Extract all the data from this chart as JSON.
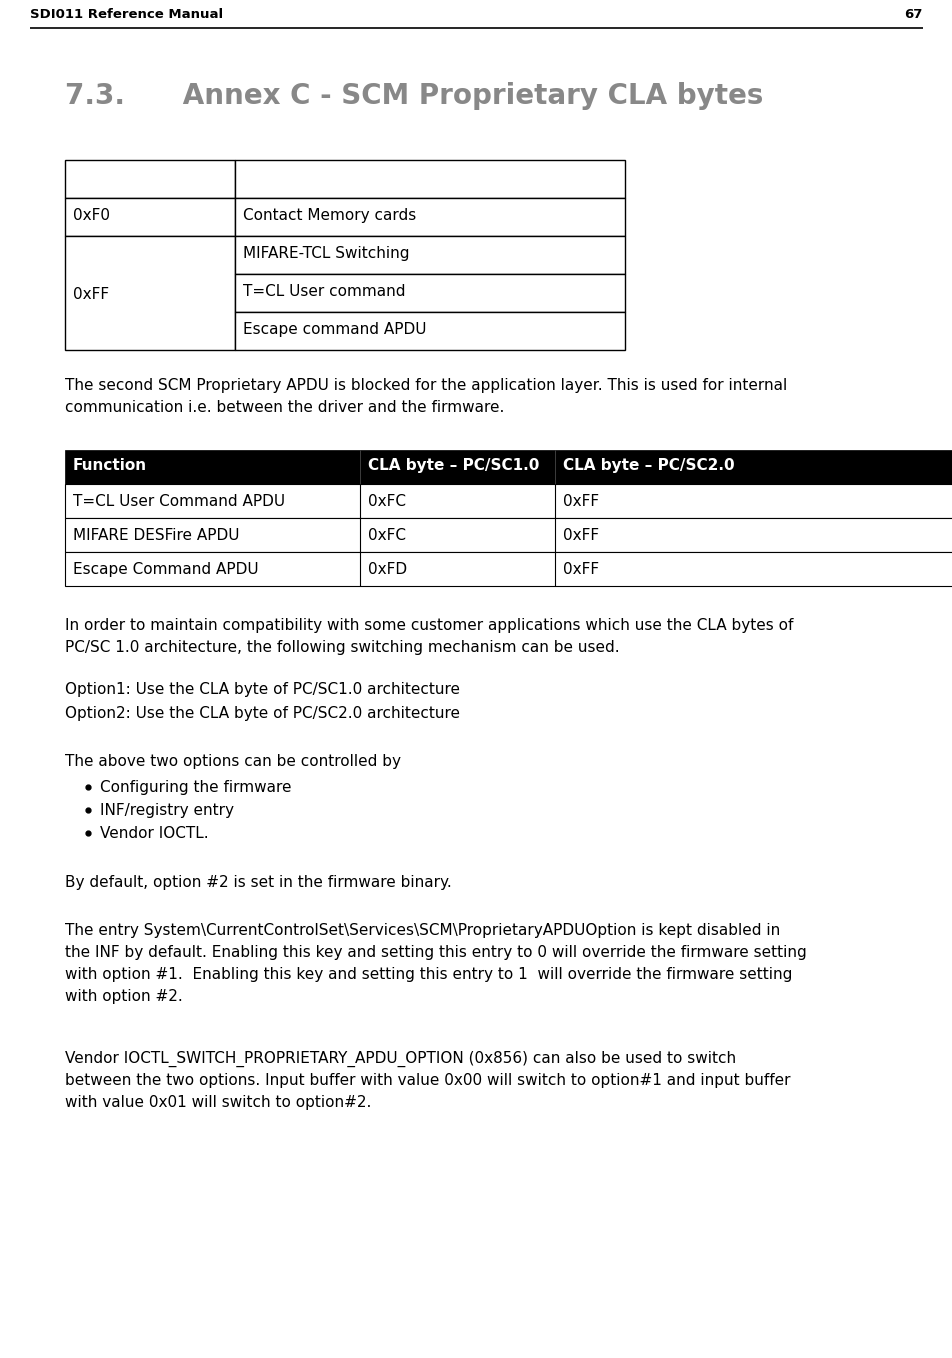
{
  "page_title": "SDI011 Reference Manual",
  "page_number": "67",
  "section_title": "7.3.      Annex C - SCM Proprietary CLA bytes",
  "para1_line1": "The second SCM Proprietary APDU is blocked for the application layer. This is used for internal",
  "para1_line2": "communication i.e. between the driver and the firmware.",
  "table2_headers": [
    "Function",
    "CLA byte – PC/SC1.0",
    "CLA byte – PC/SC2.0"
  ],
  "table2_rows": [
    [
      "T=CL User Command APDU",
      "0xFC",
      "0xFF"
    ],
    [
      "MIFARE DESFire APDU",
      "0xFC",
      "0xFF"
    ],
    [
      "Escape Command APDU",
      "0xFD",
      "0xFF"
    ]
  ],
  "para2_line1": "In order to maintain compatibility with some customer applications which use the CLA bytes of",
  "para2_line2": "PC/SC 1.0 architecture, the following switching mechanism can be used.",
  "option1": "Option1: Use the CLA byte of PC/SC1.0 architecture",
  "option2": "Option2: Use the CLA byte of PC/SC2.0 architecture",
  "para3": "The above two options can be controlled by",
  "bullets": [
    "Configuring the firmware",
    "INF/registry entry",
    "Vendor IOCTL."
  ],
  "para4": "By default, option #2 is set in the firmware binary.",
  "para5_lines": [
    "The entry System\\CurrentControlSet\\Services\\SCM\\ProprietaryAPDUOption is kept disabled in",
    "the INF by default. Enabling this key and setting this entry to 0 will override the firmware setting",
    "with option #1.  Enabling this key and setting this entry to 1  will override the firmware setting",
    "with option #2."
  ],
  "para6_lines": [
    "Vendor IOCTL_SWITCH_PROPRIETARY_APDU_OPTION (0x856) can also be used to switch",
    "between the two options. Input buffer with value 0x00 will switch to option#1 and input buffer",
    "with value 0x01 will switch to option#2."
  ],
  "title_color": "#888888",
  "text_color": "#000000",
  "bg_color": "#ffffff",
  "table1_sub_labels": [
    "MIFARE-TCL Switching",
    "T=CL User command",
    "Escape command APDU"
  ],
  "table1_row0_col1": "0xF0",
  "table1_row0_col2": "Contact Memory cards",
  "table1_span_col1": "0xFF"
}
